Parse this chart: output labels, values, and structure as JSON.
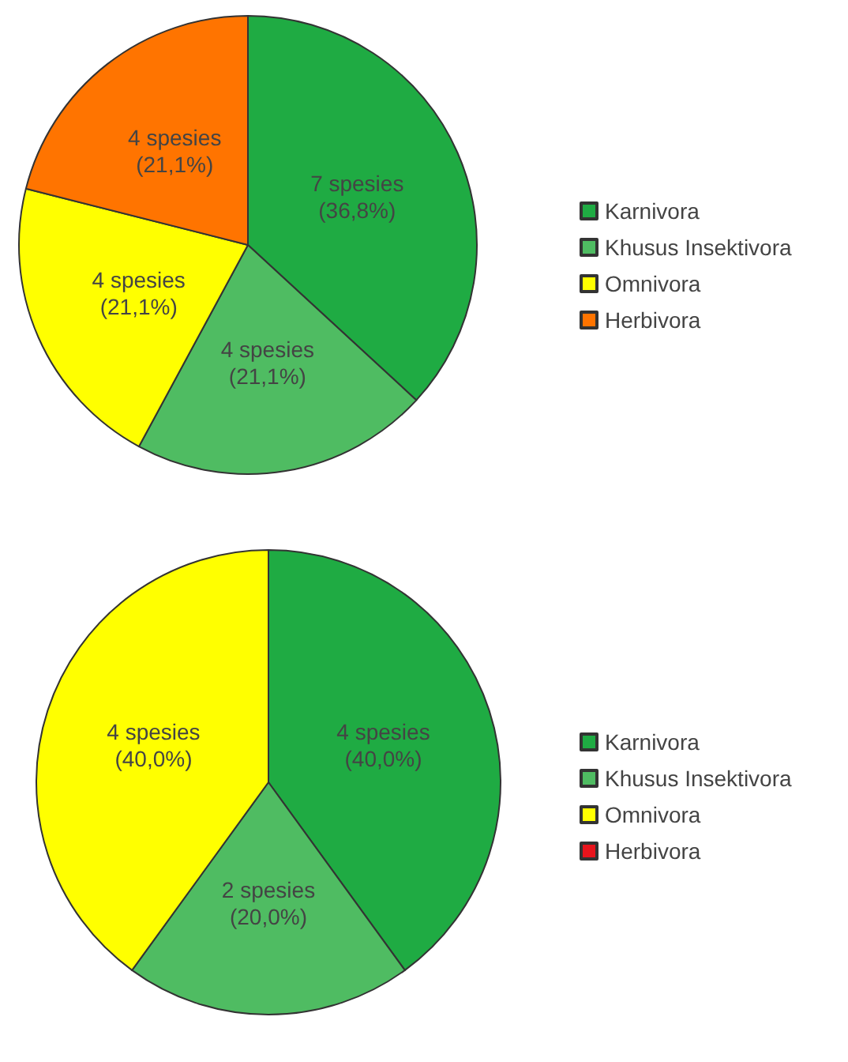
{
  "chart_data": [
    {
      "type": "pie",
      "categories": [
        "Karnivora",
        "Khusus Insektivora",
        "Omnivora",
        "Herbivora"
      ],
      "values": [
        7,
        4,
        4,
        4
      ],
      "colors": [
        "#1fab43",
        "#4fbc62",
        "#ffff00",
        "#ff7400"
      ],
      "value_labels": [
        "7 spesies\n(36,8%)",
        "4 spesies\n(21,1%)",
        "4 spesies\n(21,1%)",
        "4 spesies\n(21,1%)"
      ],
      "legend": "right"
    },
    {
      "type": "pie",
      "categories": [
        "Karnivora",
        "Khusus Insektivora",
        "Omnivora",
        "Herbivora"
      ],
      "values": [
        4,
        2,
        4,
        0
      ],
      "colors": [
        "#1fab43",
        "#4fbc62",
        "#ffff00",
        "#e8141c"
      ],
      "value_labels": [
        "4 spesies\n(40,0%)",
        "2 spesies\n(20,0%)",
        "4 spesies\n(40,0%)",
        null
      ],
      "legend": "right"
    }
  ]
}
